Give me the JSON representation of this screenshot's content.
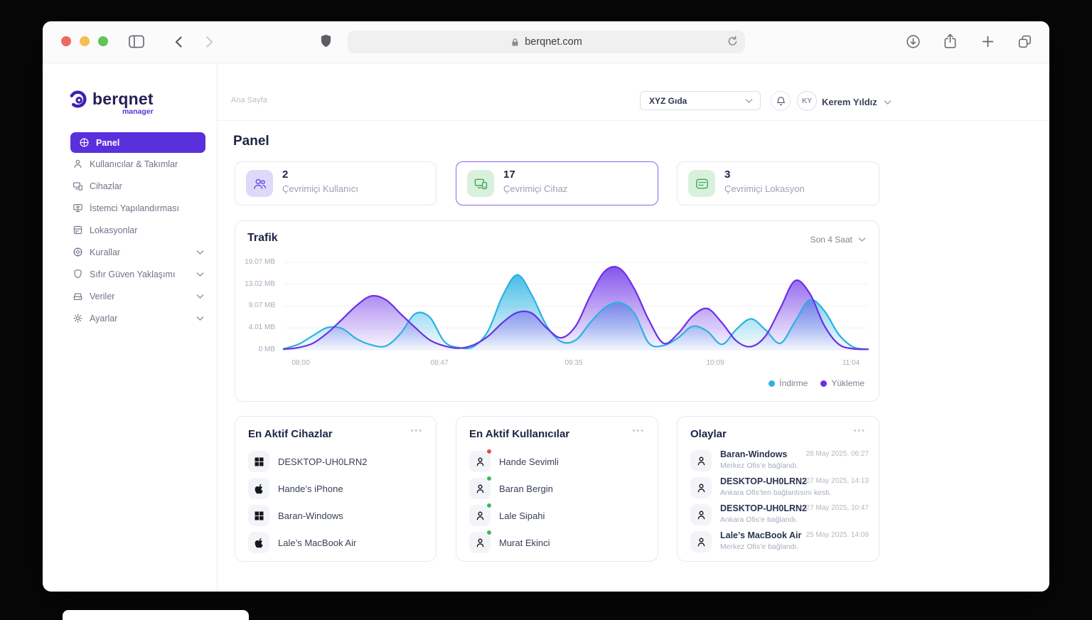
{
  "ui": {
    "more_label": "•••"
  },
  "colors": {
    "brand": "#5b2fd8",
    "download": "#29b2e2",
    "upload": "#6b2fe8",
    "green_accent": "#44a85b",
    "status_red": "#e5484d",
    "status_green": "#3cb95a"
  },
  "browser": {
    "url": "berqnet.com"
  },
  "sidebar": {
    "logo": {
      "text": "berqnet",
      "sub": "manager"
    },
    "items": [
      {
        "label": "Panel",
        "icon": "dashboard-icon",
        "active": true
      },
      {
        "label": "Kullanıcılar & Takımlar",
        "icon": "users-icon"
      },
      {
        "label": "Cihazlar",
        "icon": "devices-icon"
      },
      {
        "label": "İstemci Yapılandırması",
        "icon": "client-config-icon"
      },
      {
        "label": "Lokasyonlar",
        "icon": "locations-icon"
      },
      {
        "label": "Kurallar",
        "icon": "rules-icon",
        "expandable": true
      },
      {
        "label": "Sıfır Güven Yaklaşımı",
        "icon": "zero-trust-icon",
        "expandable": true
      },
      {
        "label": "Veriler",
        "icon": "data-icon",
        "expandable": true
      },
      {
        "label": "Ayarlar",
        "icon": "settings-icon",
        "expandable": true
      }
    ]
  },
  "header": {
    "breadcrumb": "Ana Sayfa",
    "org_selector": {
      "value": "XYZ Gıda"
    },
    "user": {
      "initials": "KY",
      "name": "Kerem Yıldız"
    }
  },
  "page": {
    "title": "Panel"
  },
  "stats": [
    {
      "value": "2",
      "label": "Çevrimiçi Kullanıcı",
      "icon": "online-users-icon",
      "icon_bg": "#ded9f9",
      "accent": "#6b4ce0",
      "selected": false
    },
    {
      "value": "17",
      "label": "Çevrimiçi Cihaz",
      "icon": "online-devices-icon",
      "icon_bg": "#d9f0dd",
      "accent": "#44a85b",
      "selected": true
    },
    {
      "value": "3",
      "label": "Çevrimiçi Lokasyon",
      "icon": "online-locations-icon",
      "icon_bg": "#d9f0dd",
      "accent": "#44a85b",
      "selected": false
    }
  ],
  "chart_data": {
    "type": "area",
    "title": "Trafik",
    "range_selector": "Son 4 Saat",
    "unit": "MB",
    "grid": true,
    "legend_position": "bottom-right",
    "ylim": [
      0,
      19.07
    ],
    "y_ticks": [
      "19.07 MB",
      "13.02 MB",
      "9.07 MB",
      "4.01 MB",
      "0 MB"
    ],
    "y_tick_values": [
      19.07,
      13.02,
      9.07,
      4.01,
      0
    ],
    "x_ticks": [
      "08:00",
      "08:47",
      "09:35",
      "10:09",
      "11:04"
    ],
    "x_percent": [
      0,
      2.5,
      5,
      7.5,
      10,
      12.5,
      15,
      17.5,
      20,
      22.5,
      25,
      27.5,
      30,
      32.5,
      35,
      37.5,
      40,
      42.5,
      45,
      47.5,
      50,
      52.5,
      55,
      57.5,
      60,
      62.5,
      65,
      67.5,
      70,
      72.5,
      75,
      77.5,
      80,
      82.5,
      85,
      87.5,
      90,
      92.5,
      95,
      97.5,
      100
    ],
    "series": [
      {
        "name": "İndirme",
        "color": "#29b2e2",
        "values": [
          0.2,
          1.0,
          2.6,
          4.1,
          3.9,
          2.0,
          0.9,
          0.7,
          3.0,
          7.3,
          6.5,
          1.5,
          0.4,
          0.6,
          3.5,
          11.0,
          15.6,
          11.0,
          4.5,
          1.5,
          1.8,
          5.3,
          8.7,
          9.7,
          7.4,
          1.2,
          0.8,
          2.2,
          4.4,
          3.4,
          1.0,
          3.8,
          6.1,
          3.6,
          1.2,
          5.5,
          10.2,
          8.0,
          2.8,
          0.5,
          0.1
        ]
      },
      {
        "name": "Yükleme",
        "color": "#6b2fe8",
        "values": [
          0.1,
          0.4,
          1.2,
          3.1,
          6.0,
          9.2,
          10.9,
          10.2,
          7.3,
          4.1,
          1.8,
          0.7,
          0.3,
          0.9,
          2.5,
          5.3,
          7.6,
          7.4,
          4.0,
          2.2,
          4.5,
          11.0,
          16.7,
          17.4,
          12.2,
          5.8,
          1.2,
          3.0,
          6.8,
          8.5,
          5.2,
          1.6,
          0.6,
          2.6,
          8.6,
          14.0,
          11.4,
          4.6,
          1.0,
          0.2,
          0.1
        ]
      }
    ]
  },
  "cards": {
    "devices": {
      "title": "En Aktif Cihazlar",
      "items": [
        {
          "name": "DESKTOP-UH0LRN2",
          "os": "windows"
        },
        {
          "name": "Hande’s iPhone",
          "os": "apple"
        },
        {
          "name": "Baran-Windows",
          "os": "windows"
        },
        {
          "name": "Lale’s MacBook Air",
          "os": "apple"
        }
      ]
    },
    "users": {
      "title": "En Aktif Kullanıcılar",
      "items": [
        {
          "name": "Hande Sevimli",
          "status": "red"
        },
        {
          "name": "Baran Bergin",
          "status": "green"
        },
        {
          "name": "Lale Sipahi",
          "status": "green"
        },
        {
          "name": "Murat Ekinci",
          "status": "green"
        }
      ]
    },
    "events": {
      "title": "Olaylar",
      "items": [
        {
          "name": "Baran-Windows",
          "desc": "Merkez Ofis’e bağlandı.",
          "time": "28 May 2025, 06:27"
        },
        {
          "name": "DESKTOP-UH0LRN2",
          "desc": "Ankara Ofis’ten bağlantısını kesti.",
          "time": "27 May 2025, 14:13"
        },
        {
          "name": "DESKTOP-UH0LRN2",
          "desc": "Ankara Ofis’e bağlandı.",
          "time": "27 May 2025, 10:47"
        },
        {
          "name": "Lale’s MacBook Air",
          "desc": "Merkez Ofis’e bağlandı.",
          "time": "25 May 2025, 14:09"
        }
      ]
    }
  }
}
